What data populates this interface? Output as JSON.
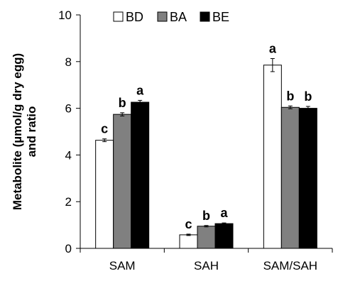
{
  "chart_data": {
    "type": "bar",
    "title": "",
    "xlabel": "",
    "ylabel": "Metabolite (µmol/g dry egg) and ratio",
    "ylabel_lines": [
      "Metabolite (µmol/g dry egg)",
      "and ratio"
    ],
    "ylim": [
      0,
      10
    ],
    "yticks": [
      0,
      2,
      4,
      6,
      8,
      10
    ],
    "grid": false,
    "legend_position": "top",
    "categories": [
      "SAM",
      "SAH",
      "SAM/SAH"
    ],
    "series": [
      {
        "name": "BD",
        "color": "#ffffff",
        "values": [
          4.63,
          0.58,
          7.85
        ],
        "errors": [
          0.06,
          0.03,
          0.28
        ],
        "letters": [
          "c",
          "c",
          "a"
        ]
      },
      {
        "name": "BA",
        "color": "#808080",
        "values": [
          5.74,
          0.95,
          6.04
        ],
        "errors": [
          0.07,
          0.03,
          0.06
        ],
        "letters": [
          "b",
          "b",
          "b"
        ]
      },
      {
        "name": "BE",
        "color": "#000000",
        "values": [
          6.26,
          1.06,
          6.0
        ],
        "errors": [
          0.08,
          0.03,
          0.08
        ],
        "letters": [
          "a",
          "a",
          "b"
        ]
      }
    ]
  }
}
